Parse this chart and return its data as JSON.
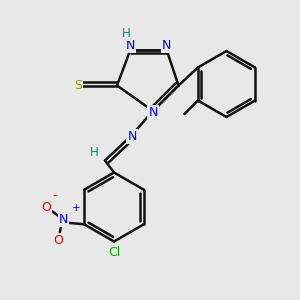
{
  "bg": "#e8e8e8",
  "bond_color": "#111111",
  "N_color": "#0000ee",
  "H_color": "#008888",
  "S_color": "#999900",
  "O_color": "#ee0000",
  "Cl_color": "#00aa00",
  "lw": 1.8,
  "fs": 9.0,
  "xlim": [
    0,
    10
  ],
  "ylim": [
    0,
    10
  ]
}
